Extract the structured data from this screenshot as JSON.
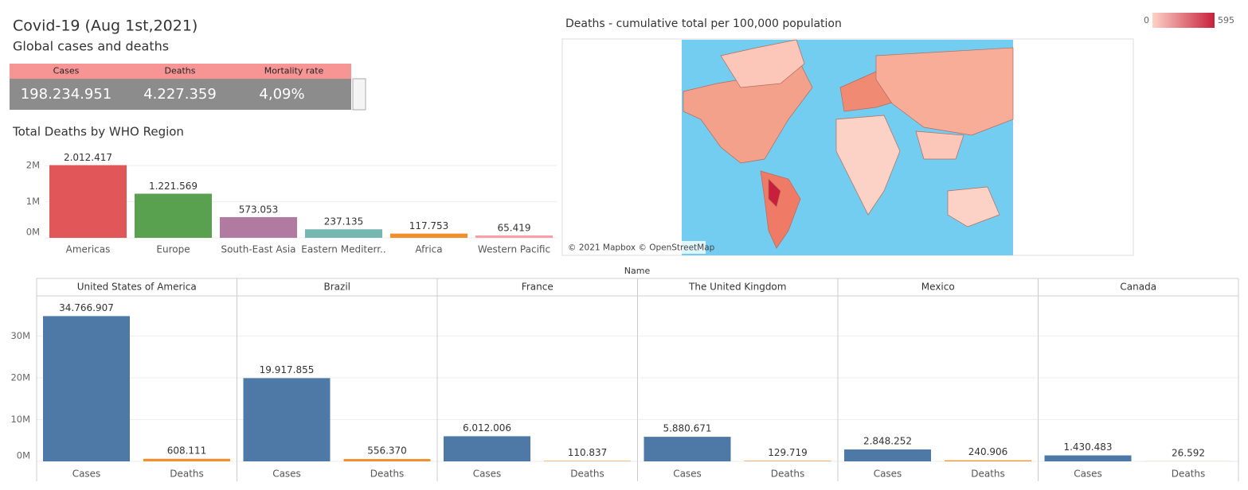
{
  "header": {
    "title": "Covid-19 (Aug 1st,2021)",
    "subtitle": "Global cases and deaths"
  },
  "kpis": {
    "labels": [
      "Cases",
      "Deaths",
      "Mortality rate"
    ],
    "values": [
      "198.234.951",
      "4.227.359",
      "4,09%"
    ]
  },
  "map": {
    "title": "Deaths - cumulative total per 100,000 population",
    "legend_min": 0,
    "legend_max": 595,
    "attribution": "© 2021 Mapbox © OpenStreetMap"
  },
  "chart_data": [
    {
      "type": "bar",
      "title": "Total Deaths by WHO Region",
      "categories": [
        "Americas",
        "Europe",
        "South-East Asia",
        "Eastern Mediterr..",
        "Africa",
        "Western Pacific"
      ],
      "values": [
        2012417,
        1221569,
        573053,
        237135,
        117753,
        65419
      ],
      "value_labels": [
        "2.012.417",
        "1.221.569",
        "573.053",
        "237.135",
        "117.753",
        "65.419"
      ],
      "colors": [
        "#e15759",
        "#59a14f",
        "#b07aa1",
        "#76b7b2",
        "#f28e2b",
        "#ff9da7"
      ],
      "ylim": [
        0,
        2400000
      ],
      "yticks": [
        {
          "value": 0,
          "label": "0M"
        },
        {
          "value": 1000000,
          "label": "1M"
        },
        {
          "value": 2000000,
          "label": "2M"
        }
      ],
      "grid": true
    },
    {
      "type": "faceted_bar",
      "xlabel": "Name",
      "categories": [
        "United States of America",
        "Brazil",
        "France",
        "The United Kingdom",
        "Mexico",
        "Canada"
      ],
      "series": [
        {
          "name": "Cases",
          "color": "#4e79a7",
          "values": [
            34766907,
            19917855,
            6012006,
            5880671,
            2848252,
            1430483
          ],
          "value_labels": [
            "34.766.907",
            "19.917.855",
            "6.012.006",
            "5.880.671",
            "2.848.252",
            "1.430.483"
          ]
        },
        {
          "name": "Deaths",
          "color": "#f28e2b",
          "values": [
            608111,
            556370,
            110837,
            129719,
            240906,
            26592
          ],
          "value_labels": [
            "608.111",
            "556.370",
            "110.837",
            "129.719",
            "240.906",
            "26.592"
          ]
        }
      ],
      "ylim": [
        0,
        39600000
      ],
      "yticks": [
        {
          "value": 0,
          "label": "0M"
        },
        {
          "value": 10000000,
          "label": "10M"
        },
        {
          "value": 20000000,
          "label": "20M"
        },
        {
          "value": 30000000,
          "label": "30M"
        }
      ],
      "grid": true
    }
  ]
}
